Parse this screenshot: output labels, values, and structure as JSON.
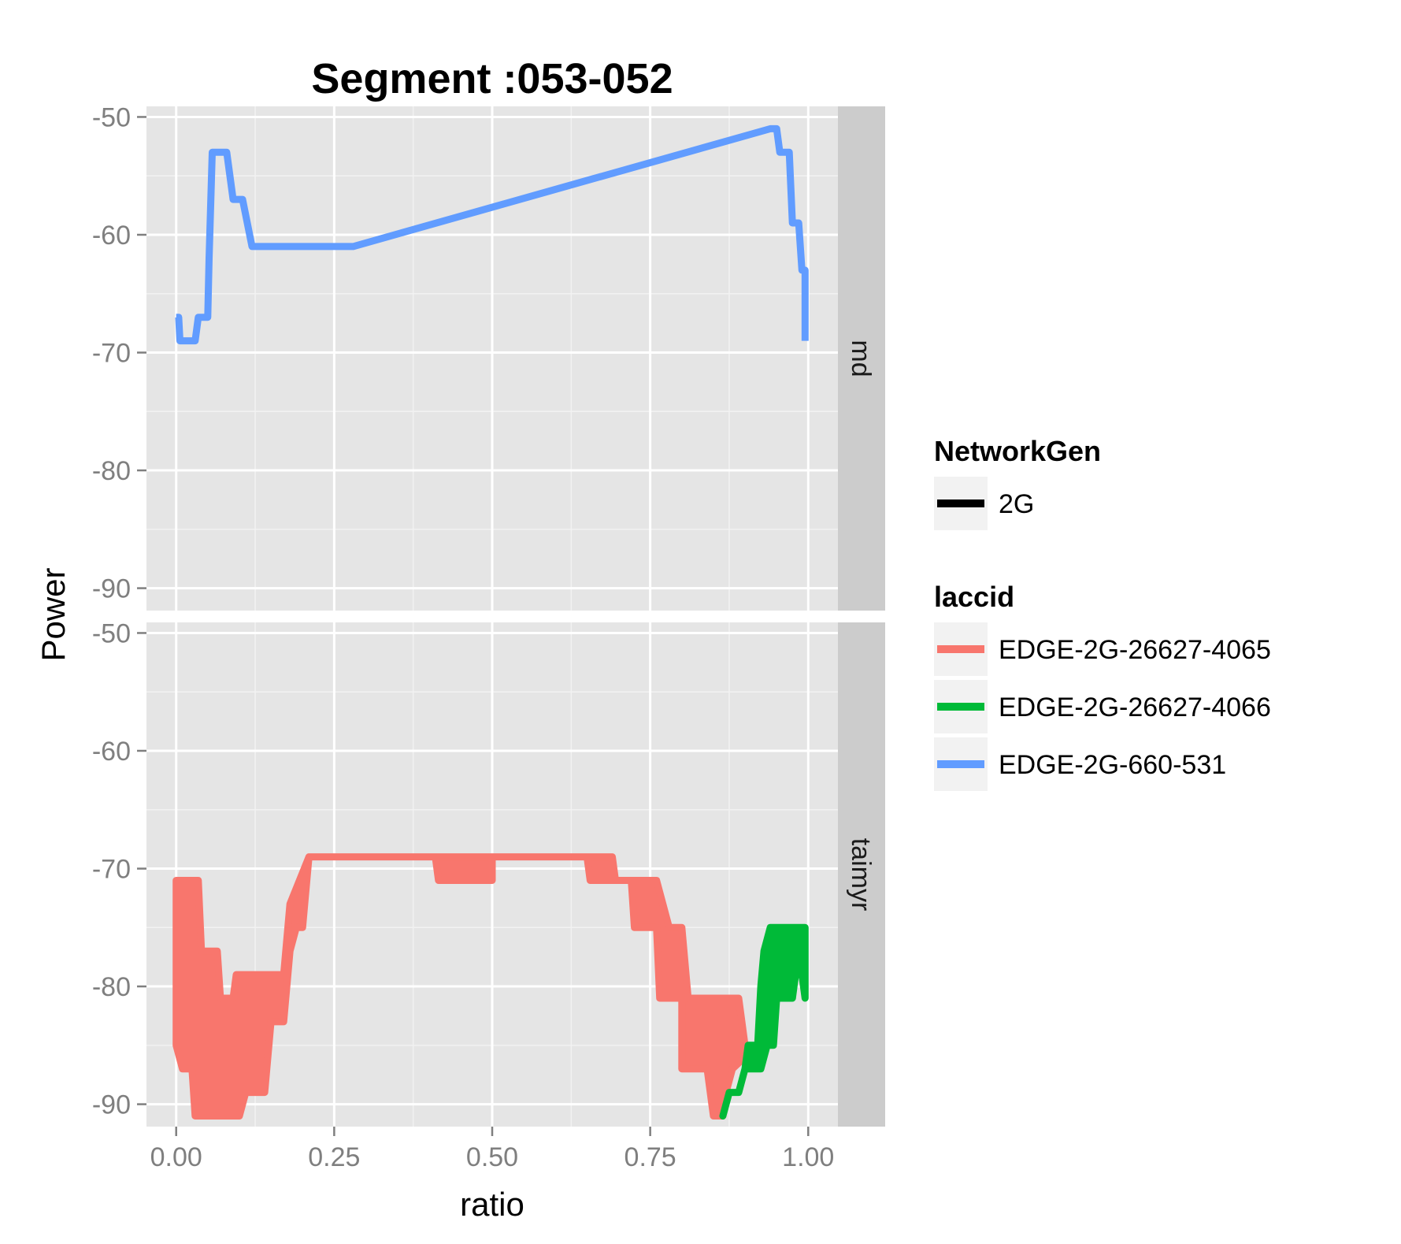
{
  "chart_data": {
    "type": "line",
    "title": "Segment :053-052",
    "xlabel": "ratio",
    "ylabel": "Power",
    "xlim": [
      -0.047,
      1.047
    ],
    "ylim": [
      -91.9,
      -49.1
    ],
    "x_ticks": [
      0,
      0.25,
      0.5,
      0.75,
      1
    ],
    "x_tick_labels": [
      "0.00",
      "0.25",
      "0.50",
      "0.75",
      "1.00"
    ],
    "y_ticks": [
      -50,
      -60,
      -70,
      -80,
      -90
    ],
    "y_tick_labels": [
      "-50",
      "-60",
      "-70",
      "-80",
      "-90"
    ],
    "grid": true,
    "panel_background": "#E5E5E5",
    "strip_background": "#CCCCCC",
    "panels": [
      {
        "strip_label": "md",
        "series": [
          {
            "name": "EDGE-2G-660-531",
            "color": "#619CFF",
            "style": "line",
            "points": [
              [
                0,
                -67
              ],
              [
                0.004,
                -67
              ],
              [
                0.006,
                -69
              ],
              [
                0.03,
                -69
              ],
              [
                0.035,
                -67
              ],
              [
                0.045,
                -67
              ],
              [
                0.05,
                -67
              ],
              [
                0.052,
                -62
              ],
              [
                0.057,
                -53
              ],
              [
                0.08,
                -53
              ],
              [
                0.09,
                -57
              ],
              [
                0.105,
                -57
              ],
              [
                0.12,
                -61
              ],
              [
                0.28,
                -61
              ],
              [
                0.94,
                -51
              ],
              [
                0.95,
                -51
              ],
              [
                0.955,
                -53
              ],
              [
                0.97,
                -53
              ],
              [
                0.975,
                -59
              ],
              [
                0.985,
                -59
              ],
              [
                0.99,
                -63
              ],
              [
                0.995,
                -63
              ],
              [
                0.995,
                -69
              ]
            ]
          }
        ]
      },
      {
        "strip_label": "taimyr",
        "series": [
          {
            "name": "EDGE-2G-26627-4065",
            "color": "#F8766D",
            "style": "dense-band",
            "upper": [
              [
                0,
                -71
              ],
              [
                0.035,
                -71
              ],
              [
                0.04,
                -77
              ],
              [
                0.065,
                -77
              ],
              [
                0.07,
                -81
              ],
              [
                0.09,
                -81
              ],
              [
                0.095,
                -79
              ],
              [
                0.17,
                -79
              ],
              [
                0.18,
                -73
              ],
              [
                0.21,
                -69
              ],
              [
                0.41,
                -69
              ],
              [
                0.415,
                -69
              ],
              [
                0.5,
                -69
              ],
              [
                0.5,
                -69
              ],
              [
                0.65,
                -69
              ],
              [
                0.69,
                -69
              ],
              [
                0.695,
                -71
              ],
              [
                0.72,
                -71
              ],
              [
                0.73,
                -71
              ],
              [
                0.76,
                -71
              ],
              [
                0.78,
                -75
              ],
              [
                0.8,
                -75
              ],
              [
                0.81,
                -81
              ],
              [
                0.89,
                -81
              ],
              [
                0.895,
                -83
              ],
              [
                0.9,
                -85
              ],
              [
                0.9,
                -86
              ]
            ],
            "lower": [
              [
                0,
                -85
              ],
              [
                0.01,
                -87
              ],
              [
                0.025,
                -87
              ],
              [
                0.03,
                -91
              ],
              [
                0.1,
                -91
              ],
              [
                0.11,
                -89
              ],
              [
                0.14,
                -89
              ],
              [
                0.15,
                -83
              ],
              [
                0.17,
                -83
              ],
              [
                0.18,
                -77
              ],
              [
                0.19,
                -75
              ],
              [
                0.2,
                -75
              ],
              [
                0.21,
                -69
              ],
              [
                0.41,
                -69
              ],
              [
                0.415,
                -71
              ],
              [
                0.5,
                -71
              ],
              [
                0.5,
                -69
              ],
              [
                0.65,
                -69
              ],
              [
                0.655,
                -71
              ],
              [
                0.72,
                -71
              ],
              [
                0.725,
                -75
              ],
              [
                0.76,
                -75
              ],
              [
                0.765,
                -81
              ],
              [
                0.8,
                -81
              ],
              [
                0.8,
                -87
              ],
              [
                0.84,
                -87
              ],
              [
                0.85,
                -91
              ],
              [
                0.865,
                -91
              ],
              [
                0.87,
                -89
              ],
              [
                0.88,
                -87
              ],
              [
                0.9,
                -86
              ]
            ]
          },
          {
            "name": "EDGE-2G-26627-4066",
            "color": "#00BA38",
            "style": "dense-band",
            "upper": [
              [
                0.865,
                -91
              ],
              [
                0.875,
                -89
              ],
              [
                0.89,
                -89
              ],
              [
                0.9,
                -87
              ],
              [
                0.905,
                -85
              ],
              [
                0.92,
                -85
              ],
              [
                0.925,
                -80
              ],
              [
                0.93,
                -77
              ],
              [
                0.94,
                -75
              ],
              [
                0.995,
                -75
              ]
            ],
            "lower": [
              [
                0.865,
                -91
              ],
              [
                0.875,
                -89
              ],
              [
                0.89,
                -89
              ],
              [
                0.9,
                -87
              ],
              [
                0.91,
                -87
              ],
              [
                0.925,
                -87
              ],
              [
                0.935,
                -85
              ],
              [
                0.945,
                -85
              ],
              [
                0.95,
                -81
              ],
              [
                0.975,
                -81
              ],
              [
                0.98,
                -79
              ],
              [
                0.99,
                -79
              ],
              [
                0.995,
                -81
              ]
            ]
          }
        ]
      }
    ],
    "legend": {
      "position": "right",
      "groups": [
        {
          "title": "NetworkGen",
          "items": [
            {
              "label": "2G",
              "color": "#000000"
            }
          ]
        },
        {
          "title": "laccid",
          "items": [
            {
              "label": "EDGE-2G-26627-4065",
              "color": "#F8766D"
            },
            {
              "label": "EDGE-2G-26627-4066",
              "color": "#00BA38"
            },
            {
              "label": "EDGE-2G-660-531",
              "color": "#619CFF"
            }
          ]
        }
      ]
    }
  }
}
